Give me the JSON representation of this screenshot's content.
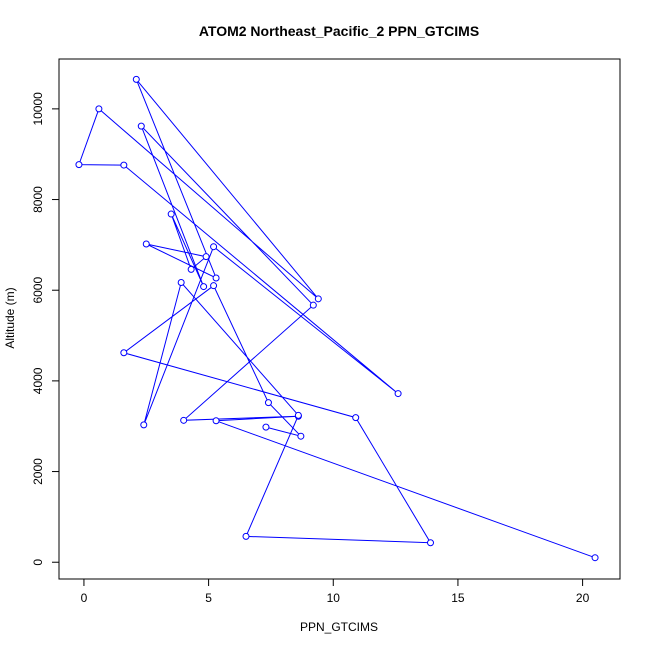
{
  "chart_data": {
    "type": "line",
    "title": "ATOM2 Northeast_Pacific_2 PPN_GTCIMS",
    "xlabel": "PPN_GTCIMS",
    "ylabel": "Altitude (m)",
    "xlim": [
      -1.0,
      21.5
    ],
    "ylim": [
      -370,
      11100
    ],
    "x_ticks": [
      0,
      5,
      10,
      15,
      20
    ],
    "x_tick_labels": [
      "0",
      "5",
      "10",
      "15",
      "20"
    ],
    "y_ticks": [
      0,
      2000,
      4000,
      6000,
      8000,
      10000
    ],
    "y_tick_labels": [
      "0",
      "2000",
      "4000",
      "6000",
      "8000",
      "10000"
    ],
    "grid": false,
    "line_color": "#0000ff",
    "marker": "open-circle",
    "series": [
      {
        "x": [
          20.5,
          5.3,
          8.6,
          4.0,
          9.2,
          2.3,
          4.8,
          3.5,
          4.3,
          4.9,
          2.5,
          5.3,
          2.1,
          9.4,
          0.6,
          -0.2,
          1.6,
          12.6,
          5.2,
          2.4,
          3.9,
          8.6,
          6.5,
          13.9,
          10.9,
          1.6,
          5.2,
          7.4,
          8.7,
          7.3
        ],
        "y": [
          100,
          3120,
          3220,
          3130,
          5670,
          9620,
          6080,
          7680,
          6460,
          6740,
          7020,
          6270,
          10650,
          5810,
          10000,
          8770,
          8760,
          3720,
          6960,
          3030,
          6170,
          3240,
          570,
          430,
          3190,
          4620,
          6100,
          3520,
          2780,
          2980
        ]
      }
    ]
  }
}
